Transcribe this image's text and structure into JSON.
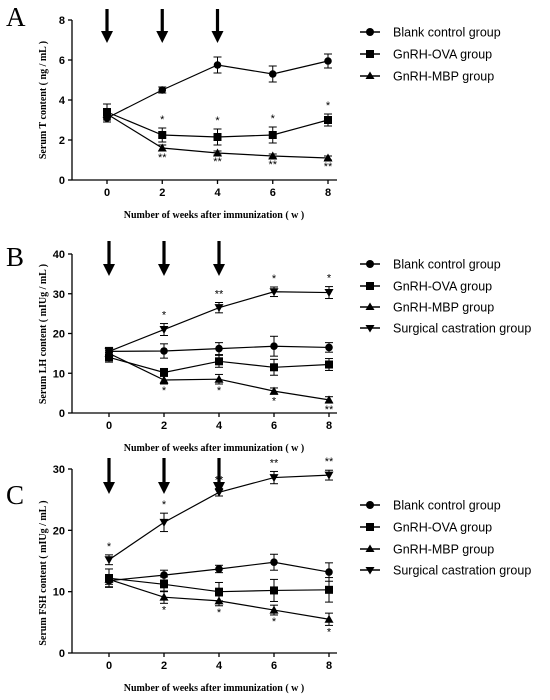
{
  "chart_data": [
    {
      "type": "line",
      "panel_label": "A",
      "ylabel": "Serum T content ( ng / mL )",
      "xlabel": "Number of weeks after immunization ( w )",
      "x": [
        0,
        2,
        4,
        6,
        8
      ],
      "xticks": [
        "0",
        "2",
        "4",
        "6",
        "8"
      ],
      "yticks": [
        "0",
        "2",
        "4",
        "6",
        "8"
      ],
      "xlim": [
        -0.9,
        8.4
      ],
      "ylim": [
        0,
        8
      ],
      "immunization_arrows_at_week": [
        0,
        2,
        4
      ],
      "legend_position": "right",
      "grid": false,
      "series": [
        {
          "name": "Blank control group",
          "marker": "circle",
          "values": [
            3.1,
            4.5,
            5.75,
            5.3,
            5.95
          ],
          "errors": [
            0.2,
            0.15,
            0.4,
            0.4,
            0.35
          ],
          "annotations": [
            "",
            "",
            "",
            "",
            ""
          ]
        },
        {
          "name": "GnRH-OVA group",
          "marker": "square",
          "values": [
            3.4,
            2.25,
            2.15,
            2.25,
            3.0
          ],
          "errors": [
            0.4,
            0.35,
            0.4,
            0.4,
            0.3
          ],
          "annotations": [
            "",
            "*",
            "*",
            "*",
            "*"
          ]
        },
        {
          "name": "GnRH-MBP group",
          "marker": "triangle-up",
          "values": [
            3.3,
            1.6,
            1.35,
            1.2,
            1.1
          ],
          "errors": [
            0.2,
            0.15,
            0.1,
            0.1,
            0.1
          ],
          "annotations": [
            "",
            "**",
            "**",
            "**",
            "**"
          ]
        }
      ]
    },
    {
      "type": "line",
      "panel_label": "B",
      "ylabel": "Serum LH content ( mIUg / mL )",
      "xlabel": "Number of weeks after immunization ( w )",
      "x": [
        0,
        2,
        4,
        6,
        8
      ],
      "xticks": [
        "0",
        "2",
        "4",
        "6",
        "8"
      ],
      "yticks": [
        "0",
        "10",
        "20",
        "30",
        "40"
      ],
      "xlim": [
        -0.9,
        8.4
      ],
      "ylim": [
        0,
        40
      ],
      "immunization_arrows_at_week": [
        0,
        2,
        4
      ],
      "legend_position": "right",
      "grid": false,
      "series": [
        {
          "name": "Blank control group",
          "marker": "circle",
          "values": [
            15.5,
            15.6,
            16.2,
            16.8,
            16.5
          ],
          "errors": [
            1.0,
            1.8,
            1.5,
            2.5,
            1.2
          ],
          "annotations": [
            "",
            "",
            "",
            "",
            ""
          ]
        },
        {
          "name": "GnRH-OVA group",
          "marker": "square",
          "values": [
            14.0,
            10.2,
            13.0,
            11.5,
            12.2
          ],
          "errors": [
            1.2,
            1.0,
            1.5,
            2.0,
            1.5
          ],
          "annotations": [
            "",
            "",
            "",
            "",
            ""
          ]
        },
        {
          "name": "GnRH-MBP group",
          "marker": "triangle-up",
          "values": [
            15.0,
            8.3,
            8.5,
            5.5,
            3.3
          ],
          "errors": [
            0.8,
            1.0,
            1.2,
            0.8,
            0.8
          ],
          "annotations": [
            "",
            "*",
            "*",
            "*",
            "**"
          ]
        },
        {
          "name": "Surgical castration group",
          "marker": "triangle-down",
          "values": [
            15.5,
            21.0,
            26.5,
            30.5,
            30.3
          ],
          "errors": [
            0.8,
            1.5,
            1.3,
            1.2,
            1.5
          ],
          "annotations": [
            "",
            "*",
            "**",
            "*",
            "*"
          ]
        }
      ]
    },
    {
      "type": "line",
      "panel_label": "C",
      "ylabel": "Serum FSH content ( mIUg / mL )",
      "xlabel": "Number of weeks after immunization ( w )",
      "x": [
        0,
        2,
        4,
        6,
        8
      ],
      "xticks": [
        "0",
        "2",
        "4",
        "6",
        "8"
      ],
      "yticks": [
        "0",
        "10",
        "20",
        "30"
      ],
      "xlim": [
        -0.9,
        8.4
      ],
      "ylim": [
        0,
        30
      ],
      "immunization_arrows_at_week": [
        0,
        2,
        4
      ],
      "legend_position": "right",
      "grid": false,
      "series": [
        {
          "name": "Blank control group",
          "marker": "circle",
          "values": [
            11.8,
            12.7,
            13.7,
            14.8,
            13.2
          ],
          "errors": [
            1.0,
            0.8,
            0.6,
            1.3,
            1.5
          ],
          "annotations": [
            "",
            "",
            "",
            "",
            ""
          ]
        },
        {
          "name": "GnRH-OVA group",
          "marker": "square",
          "values": [
            12.2,
            11.2,
            10.0,
            10.2,
            10.3
          ],
          "errors": [
            1.5,
            1.2,
            1.5,
            1.8,
            2.0
          ],
          "annotations": [
            "",
            "",
            "",
            "",
            ""
          ]
        },
        {
          "name": "GnRH-MBP group",
          "marker": "triangle-up",
          "values": [
            12.0,
            9.1,
            8.5,
            7.0,
            5.5
          ],
          "errors": [
            0.8,
            1.0,
            0.8,
            0.8,
            1.0
          ],
          "annotations": [
            "",
            "*",
            "*",
            "*",
            "*"
          ]
        },
        {
          "name": "Surgical castration group",
          "marker": "triangle-down",
          "values": [
            15.2,
            21.3,
            26.2,
            28.6,
            29.0
          ],
          "errors": [
            0.8,
            1.5,
            0.6,
            1.0,
            0.8
          ],
          "annotations": [
            "*",
            "*",
            "**",
            "**",
            "**"
          ]
        }
      ]
    }
  ]
}
